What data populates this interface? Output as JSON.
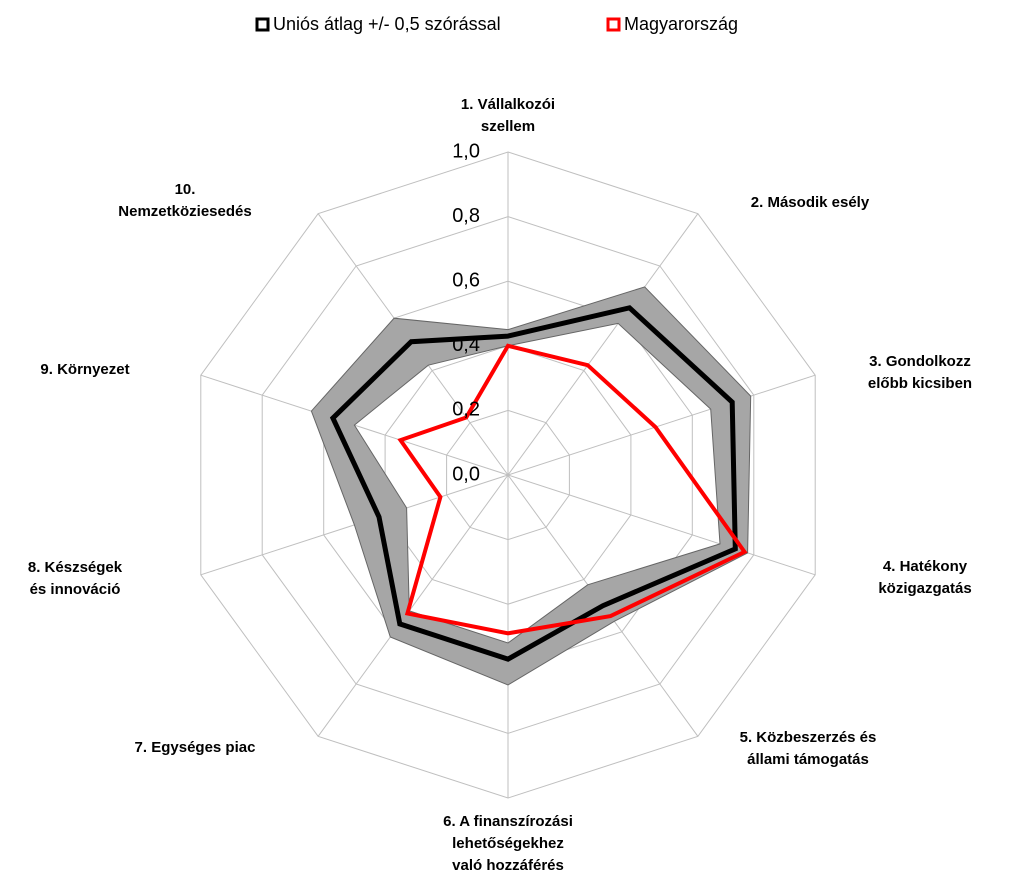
{
  "chart_data": {
    "type": "radar",
    "categories": [
      [
        "1. Vállalkozói",
        "szellem"
      ],
      [
        "2. Második esély"
      ],
      [
        "3. Gondolkozz",
        "előbb kicsiben"
      ],
      [
        "4. Hatékony",
        "közigazgatás"
      ],
      [
        "5. Közbeszerzés és",
        "állami támogatás"
      ],
      [
        "6. A finanszírozási",
        "lehetőségekhez",
        "való hozzáférés"
      ],
      [
        "7. Egységes piac"
      ],
      [
        "8. Készségek",
        "és innováció"
      ],
      [
        "9. Környezet"
      ],
      [
        "10.",
        "Nemzetköziesedés"
      ]
    ],
    "series": [
      {
        "name": "Uniós átlag +/- 0,5 szórással",
        "color": "#000000",
        "band_color": "#a6a6a6",
        "values": [
          0.43,
          0.64,
          0.73,
          0.74,
          0.5,
          0.57,
          0.57,
          0.42,
          0.57,
          0.51
        ],
        "upper": [
          0.45,
          0.72,
          0.79,
          0.78,
          0.56,
          0.65,
          0.62,
          0.5,
          0.64,
          0.6
        ],
        "lower": [
          0.4,
          0.58,
          0.66,
          0.69,
          0.42,
          0.52,
          0.52,
          0.33,
          0.5,
          0.42
        ]
      },
      {
        "name": "Magyarország",
        "color": "#ff0000",
        "values": [
          0.4,
          0.42,
          0.48,
          0.77,
          0.54,
          0.49,
          0.53,
          0.22,
          0.35,
          0.22
        ]
      }
    ],
    "ylim": [
      0,
      1
    ],
    "yticks": [
      {
        "value": 0,
        "label": "0,0"
      },
      {
        "value": 0.2,
        "label": "0,2"
      },
      {
        "value": 0.4,
        "label": "0,4"
      },
      {
        "value": 0.6,
        "label": "0,6"
      },
      {
        "value": 0.8,
        "label": "0,8"
      },
      {
        "value": 1,
        "label": "1,0"
      }
    ],
    "grid": true,
    "legend": "top"
  }
}
